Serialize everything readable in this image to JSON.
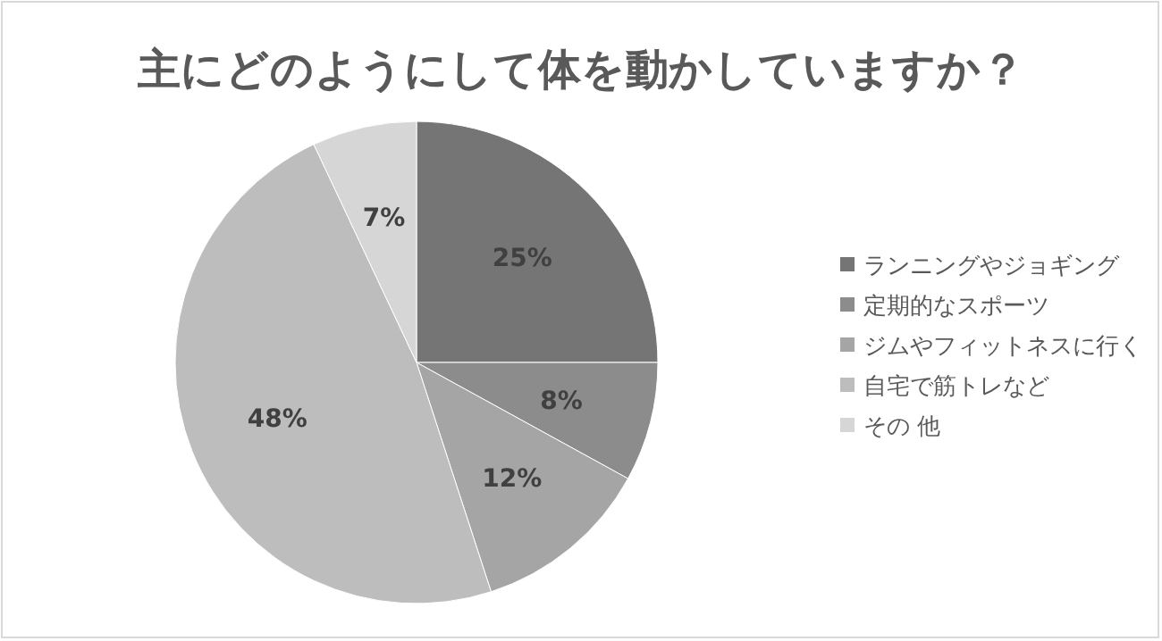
{
  "chart_data": {
    "type": "pie",
    "title": "主にどのようにして体を動かしていますか？",
    "categories": [
      "ランニングやジョギング",
      "定期的なスポーツ",
      "ジムやフィットネスに行く",
      "自宅で筋トレなど",
      "その 他"
    ],
    "values": [
      25,
      8,
      12,
      48,
      7
    ],
    "colors": [
      "#757575",
      "#8c8c8c",
      "#a5a5a5",
      "#bdbdbd",
      "#d6d6d6"
    ],
    "value_labels": [
      "25%",
      "8%",
      "12%",
      "48%",
      "7%"
    ],
    "legend": "right"
  }
}
